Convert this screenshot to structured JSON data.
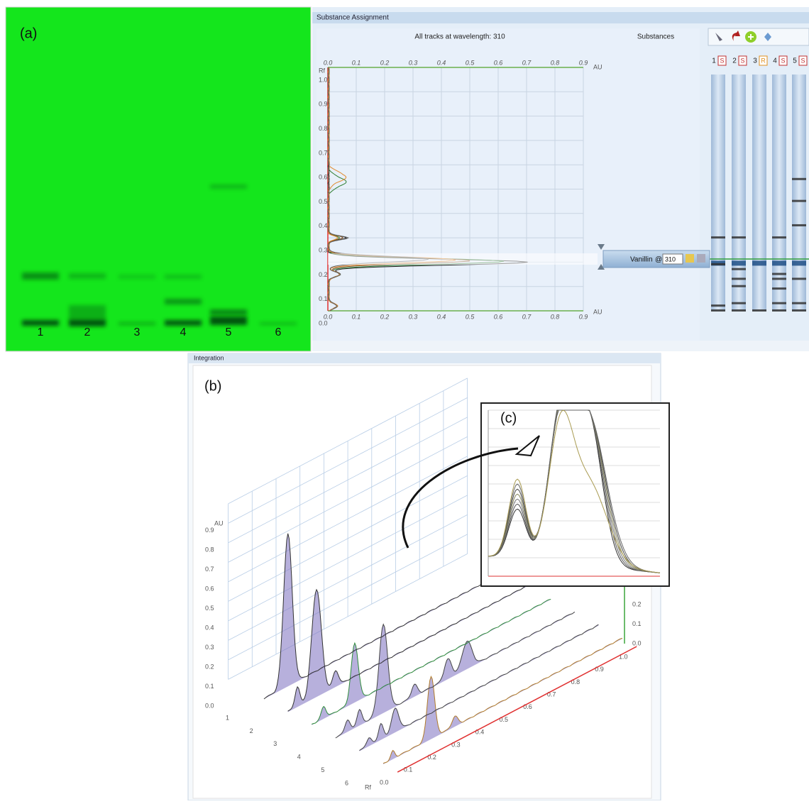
{
  "panel_a": {
    "label": "(a)",
    "lanes": [
      "1",
      "2",
      "3",
      "4",
      "5",
      "6"
    ]
  },
  "substance_assignment": {
    "title": "Substance Assignment",
    "plot_title": "All tracks at wavelength: 310",
    "x_axis_unit": "AU",
    "y_axis_label": "Rf",
    "x_ticks": [
      "0.0",
      "0.1",
      "0.2",
      "0.3",
      "0.4",
      "0.5",
      "0.6",
      "0.7",
      "0.8",
      "0.9"
    ],
    "y_ticks": [
      "1.0",
      "0.9",
      "0.8",
      "0.7",
      "0.6",
      "0.5",
      "0.4",
      "0.3",
      "0.2",
      "0.1",
      "0.0"
    ],
    "substances_header": "Substances",
    "tracks": [
      {
        "number": "1",
        "tag": "S"
      },
      {
        "number": "2",
        "tag": "S"
      },
      {
        "number": "3",
        "tag": "R"
      },
      {
        "number": "4",
        "tag": "S"
      },
      {
        "number": "5",
        "tag": "S"
      }
    ],
    "substance": "Vanillin",
    "at": "@",
    "wavelength": "310"
  },
  "panel_b": {
    "window_title": "Integration",
    "label": "(b)",
    "y_axis_label": "AU",
    "y_ticks": [
      "0.0",
      "0.1",
      "0.2",
      "0.3",
      "0.4",
      "0.5",
      "0.6",
      "0.7",
      "0.8",
      "0.9"
    ],
    "tracks": [
      "1",
      "2",
      "3",
      "4",
      "5",
      "6"
    ],
    "x_axis_label": "Rf",
    "x_ticks": [
      "0.0",
      "0.1",
      "0.2",
      "0.3",
      "0.4",
      "0.5",
      "0.6",
      "0.7",
      "0.8",
      "0.9",
      "1.0"
    ],
    "z_ticks": [
      "0.2",
      "0.1",
      "0.0"
    ],
    "inset_label": "(c)"
  }
}
